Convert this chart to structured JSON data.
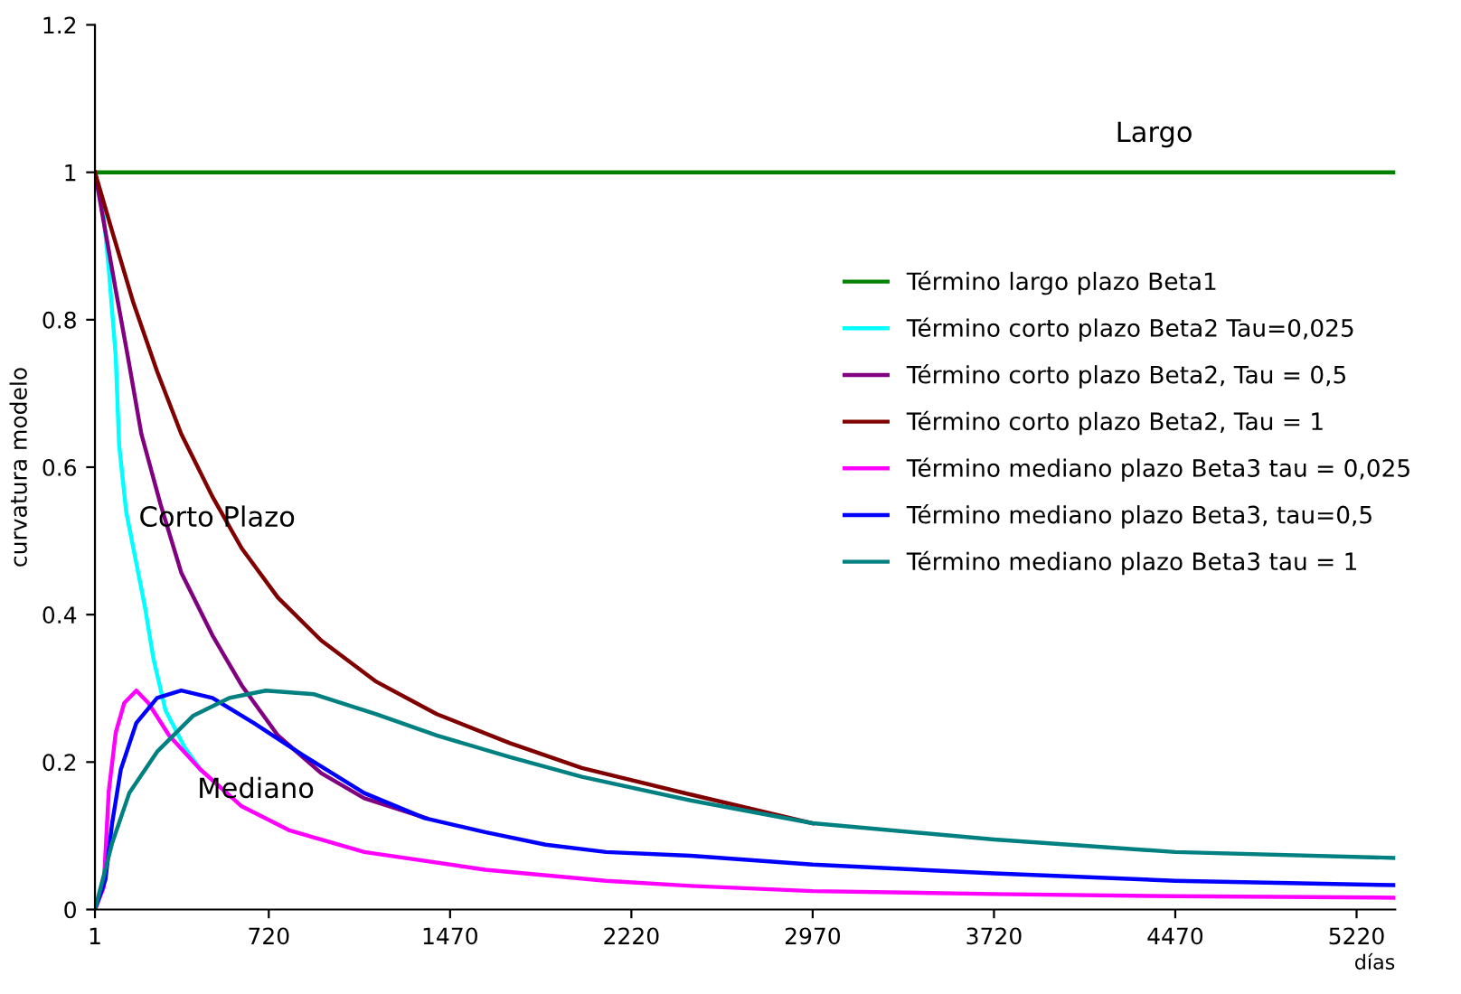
{
  "chart_data": {
    "type": "line",
    "xlabel": "días",
    "ylabel": "curvatura modelo",
    "xlim": [
      1,
      5380
    ],
    "xticks": [
      1,
      720,
      1470,
      2220,
      2970,
      3720,
      4470,
      5220
    ],
    "ylim": [
      0,
      1.2
    ],
    "yticks": [
      0,
      0.2,
      0.4,
      0.6,
      0.8,
      1,
      1.2
    ],
    "grid": false,
    "legend": "right",
    "marker": "none",
    "line_style": "solid",
    "annotations": [
      "Largo",
      "Corto Plazo",
      "Mediano"
    ],
    "series": [
      {
        "name": "Término largo plazo Beta1",
        "color": "#008000",
        "x": [
          1,
          5380
        ],
        "values": [
          1,
          1
        ]
      },
      {
        "name": "Término corto plazo Beta2 Tau=0,025",
        "color": "#00ffff",
        "x": [
          1,
          37,
          58,
          87,
          101,
          130,
          172,
          208,
          243,
          293,
          372,
          437
        ],
        "values": [
          1,
          0.94,
          0.87,
          0.75,
          0.63,
          0.54,
          0.47,
          0.41,
          0.34,
          0.27,
          0.22,
          0.19
        ]
      },
      {
        "name": "Término corto plazo Beta2, Tau = 0,5",
        "color": "#800080",
        "x": [
          1,
          44,
          87,
          137,
          193,
          272,
          358,
          487,
          608,
          758,
          937,
          1115,
          1372
        ],
        "values": [
          1,
          0.92,
          0.84,
          0.75,
          0.645,
          0.55,
          0.457,
          0.372,
          0.304,
          0.236,
          0.185,
          0.151,
          0.124
        ]
      },
      {
        "name": "Término corto plazo Beta2, Tau = 1",
        "color": "#800000",
        "x": [
          1,
          72,
          158,
          258,
          358,
          487,
          608,
          758,
          937,
          1165,
          1415,
          1715,
          2015,
          2465,
          2970
        ],
        "values": [
          1,
          0.92,
          0.825,
          0.73,
          0.645,
          0.56,
          0.49,
          0.423,
          0.365,
          0.309,
          0.265,
          0.226,
          0.192,
          0.156,
          0.117
        ]
      },
      {
        "name": "Término mediano plazo Beta3 tau = 0,025",
        "color": "#ff00ff",
        "x": [
          1,
          37,
          58,
          87,
          122,
          172,
          222,
          308,
          437,
          608,
          808,
          1115,
          1615,
          2115,
          2465,
          2970,
          3720,
          4470,
          5380
        ],
        "values": [
          0,
          0.03,
          0.16,
          0.24,
          0.28,
          0.297,
          0.28,
          0.236,
          0.19,
          0.14,
          0.107,
          0.078,
          0.054,
          0.039,
          0.032,
          0.025,
          0.021,
          0.018,
          0.016
        ]
      },
      {
        "name": "Término mediano plazo Beta3, tau=0,5",
        "color": "#0000ff",
        "x": [
          1,
          44,
          72,
          108,
          172,
          258,
          358,
          487,
          658,
          858,
          1115,
          1365,
          1615,
          1865,
          2115,
          2465,
          2970,
          3720,
          4470,
          5380
        ],
        "values": [
          0,
          0.04,
          0.117,
          0.19,
          0.253,
          0.287,
          0.297,
          0.287,
          0.253,
          0.21,
          0.158,
          0.124,
          0.105,
          0.088,
          0.078,
          0.073,
          0.061,
          0.049,
          0.039,
          0.033
        ]
      },
      {
        "name": "Término mediano plazo Beta3 tau = 1",
        "color": "#008080",
        "x": [
          1,
          72,
          143,
          258,
          408,
          558,
          708,
          908,
          1165,
          1415,
          1715,
          2015,
          2465,
          2970,
          3720,
          4470,
          5380
        ],
        "values": [
          0,
          0.09,
          0.158,
          0.214,
          0.263,
          0.287,
          0.297,
          0.292,
          0.265,
          0.236,
          0.207,
          0.18,
          0.148,
          0.117,
          0.095,
          0.078,
          0.07
        ]
      }
    ]
  }
}
